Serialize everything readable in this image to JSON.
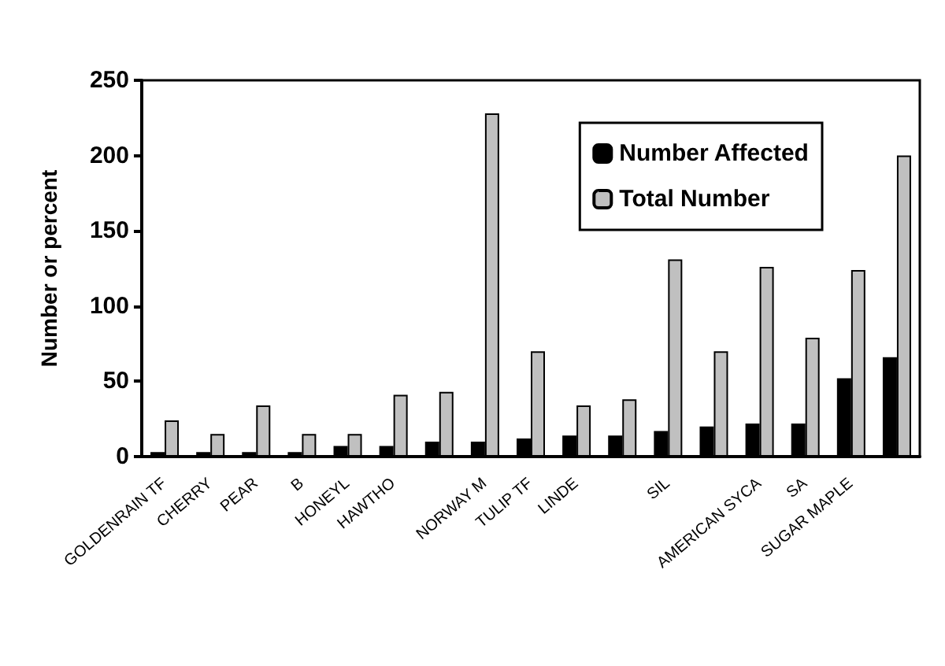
{
  "chart_data": {
    "type": "bar",
    "ylabel": "Number or percent",
    "categories": [
      "GOLDENRAIN TF",
      "CHERRY",
      "PEAR",
      "B",
      "HONEYL",
      "HAWTHO",
      null,
      "NORWAY M",
      "TULIP TF",
      "LINDE",
      null,
      "SIL",
      null,
      "AMERICAN SYCA",
      "SA",
      "SUGAR MAPLE",
      null
    ],
    "series": [
      {
        "name": "Number Affected",
        "color": "#000000",
        "values": [
          3,
          3,
          3,
          3,
          7,
          7,
          10,
          10,
          12,
          14,
          14,
          17,
          20,
          22,
          22,
          52,
          66
        ]
      },
      {
        "name": "Total Number",
        "color": "#c0c0c0",
        "values": [
          24,
          15,
          34,
          15,
          15,
          41,
          43,
          228,
          70,
          34,
          38,
          131,
          70,
          126,
          79,
          124,
          200
        ]
      }
    ],
    "ylim": [
      0,
      250
    ],
    "yticks": [
      0,
      50,
      100,
      150,
      200,
      250
    ],
    "grid": false,
    "legend": "top right"
  }
}
